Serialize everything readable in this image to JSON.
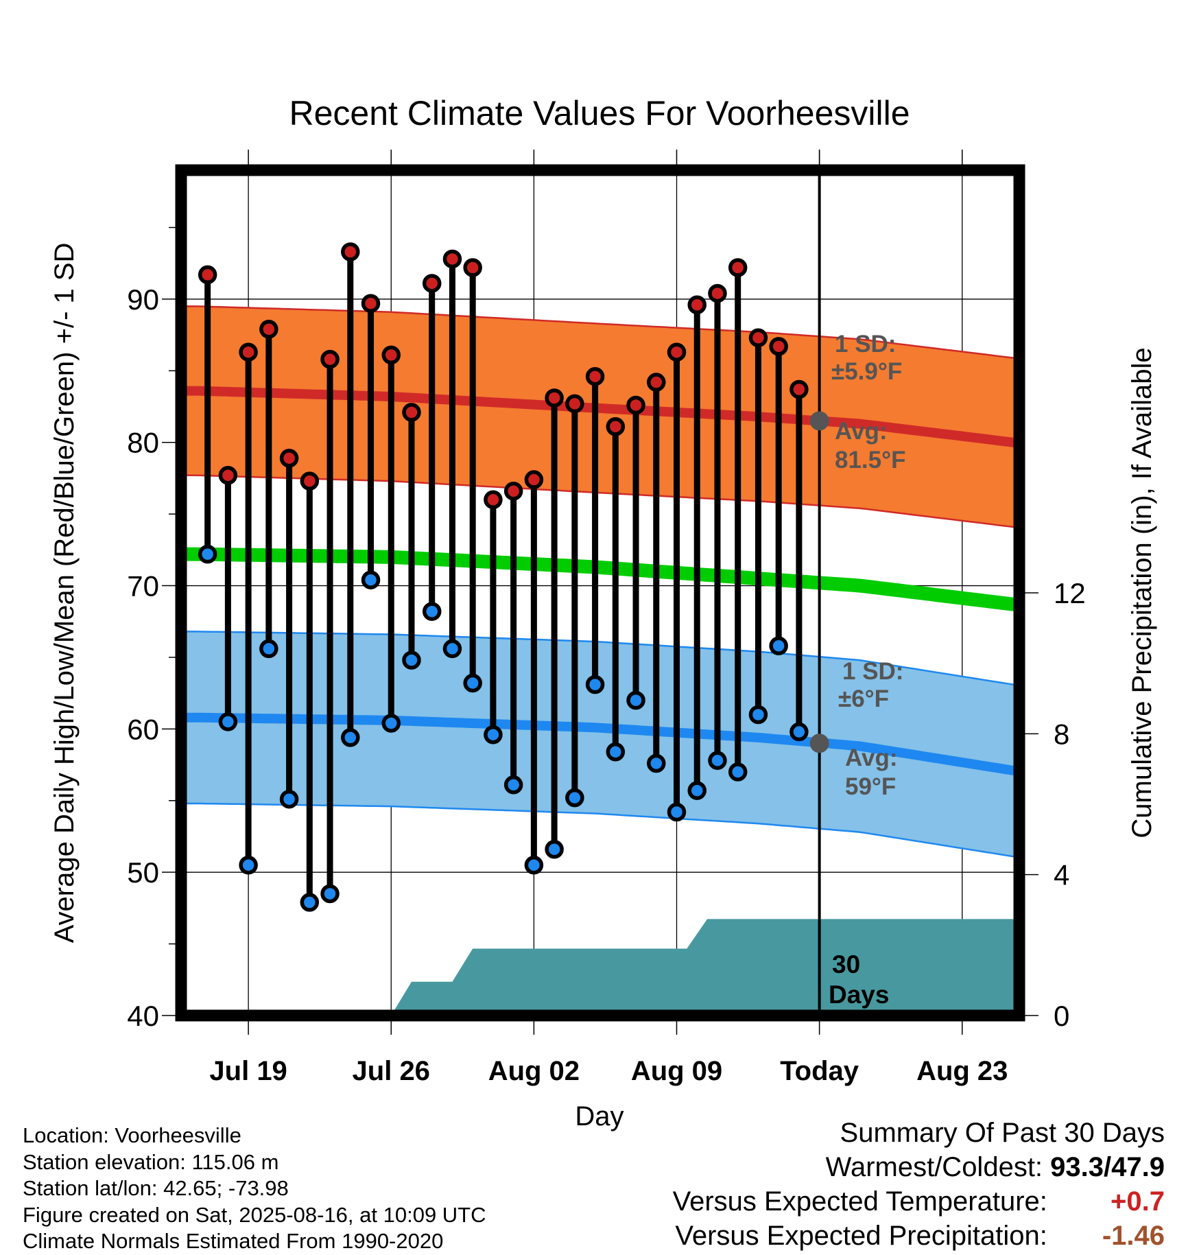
{
  "chart_data": {
    "type": "line",
    "title": "Recent Climate Values For Voorheesville",
    "xlabel": "Day",
    "ylabel": "Average Daily High/Low/Mean (Red/Blue/Green) +/- 1 SD",
    "y2label": "Cumulative Precipitation (in), If Available",
    "ylim": [
      40,
      99
    ],
    "y_ticks": [
      40,
      50,
      60,
      70,
      80,
      90
    ],
    "y2lim": [
      0,
      24
    ],
    "y2_ticks": [
      0,
      4,
      8,
      12
    ],
    "x_ticks": [
      {
        "label": "Jul 19",
        "day": 3
      },
      {
        "label": "Jul 26",
        "day": 10
      },
      {
        "label": "Aug 02",
        "day": 17
      },
      {
        "label": "Aug 09",
        "day": 24
      },
      {
        "label": "Today",
        "day": 31
      },
      {
        "label": "Aug 23",
        "day": 38
      }
    ],
    "x_range_days": [
      -0.3,
      40.8
    ],
    "today_day": 31,
    "daily_obs": {
      "days": [
        1,
        2,
        3,
        4,
        5,
        6,
        7,
        8,
        9,
        10,
        11,
        12,
        13,
        14,
        15,
        16,
        17,
        18,
        19,
        20,
        21,
        22,
        23,
        24,
        25,
        26,
        27,
        28,
        29,
        30
      ],
      "high": [
        91.7,
        77.7,
        86.3,
        87.9,
        78.9,
        77.3,
        85.8,
        93.3,
        89.7,
        86.1,
        82.1,
        91.1,
        92.8,
        92.2,
        76.0,
        76.6,
        77.4,
        83.1,
        82.7,
        84.6,
        81.1,
        82.6,
        84.2,
        86.3,
        89.6,
        90.4,
        92.2,
        87.3,
        86.7,
        83.7
      ],
      "low": [
        72.2,
        60.5,
        50.5,
        65.6,
        55.1,
        47.9,
        48.5,
        59.4,
        70.4,
        60.4,
        64.8,
        68.2,
        65.6,
        63.2,
        59.6,
        56.1,
        50.5,
        51.6,
        55.2,
        63.1,
        58.4,
        62.0,
        57.6,
        54.2,
        55.7,
        57.8,
        57.0,
        61.0,
        65.8,
        59.8
      ]
    },
    "normals": {
      "days": [
        0.5,
        10,
        20,
        28,
        33,
        40.5
      ],
      "avg_high": [
        83.6,
        83.2,
        82.4,
        81.8,
        81.3,
        80.0
      ],
      "avg_low": [
        60.8,
        60.6,
        60.1,
        59.4,
        58.8,
        57.1
      ],
      "avg_mean": [
        72.2,
        72.0,
        71.3,
        70.5,
        70.0,
        68.7
      ],
      "high_sd": 5.9,
      "low_sd": 6
    },
    "precip_cumulative": {
      "days": [
        10,
        11,
        13,
        14,
        24.5,
        25.5,
        40.8
      ],
      "values": [
        0,
        0.96,
        0.96,
        1.9,
        1.9,
        2.74,
        2.74
      ]
    },
    "annotations": {
      "high_sd_line1": "1 SD:",
      "high_sd_line2": "±5.9°F",
      "high_avg_line1": "Avg:",
      "high_avg_line2": "81.5°F",
      "low_sd_line1": "1 SD:",
      "low_sd_line2": "±6°F",
      "low_avg_line1": "Avg:",
      "low_avg_line2": "59°F",
      "window_line1": "30",
      "window_line2": "Days",
      "today_high_avg": 81.5,
      "today_low_avg": 59
    },
    "colors": {
      "high_band": "#f47b30",
      "high_line": "#d02a28",
      "low_band": "#85c1e8",
      "low_line": "#1e88f0",
      "mean_line": "#00cc00",
      "precip": "#48999f",
      "high_marker": "#cc2020",
      "low_marker": "#1e88ee",
      "today_marker": "#555555"
    }
  },
  "footer": {
    "location": "Location: Voorheesville",
    "elevation": "Station elevation: 115.06 m",
    "latlon": "Station lat/lon: 42.65; -73.98",
    "created": "Figure created on Sat, 2025-08-16, at 10:09 UTC",
    "normals": "Climate Normals Estimated From 1990-2020"
  },
  "summary": {
    "title": "Summary Of Past 30 Days",
    "warmest_label": "Warmest/Coldest:",
    "warmest_value": "93.3/47.9",
    "temp_label": "Versus Expected Temperature:",
    "temp_value": "+0.7",
    "temp_color": "#cc2222",
    "precip_label": "Versus Expected Precipitation:",
    "precip_value": "-1.46",
    "precip_color": "#a0522d"
  }
}
